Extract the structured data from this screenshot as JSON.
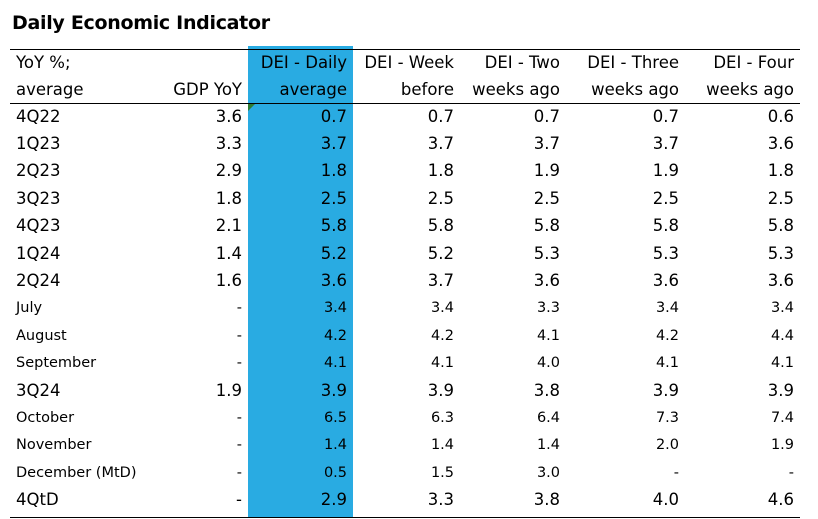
{
  "title": "Daily Economic Indicator",
  "header": {
    "row1": [
      "YoY %;",
      "",
      "DEI - Daily",
      "DEI - Week",
      "DEI - Two",
      "DEI - Three",
      "DEI - Four"
    ],
    "row2": [
      "average",
      "GDP YoY",
      "average",
      "before",
      "weeks ago",
      "weeks ago",
      "weeks ago"
    ]
  },
  "rows": [
    {
      "label": "4Q22",
      "gdp": "3.6",
      "daily": "0.7",
      "week": "0.7",
      "two": "0.7",
      "three": "0.7",
      "four": "0.6",
      "style": "big"
    },
    {
      "label": "1Q23",
      "gdp": "3.3",
      "daily": "3.7",
      "week": "3.7",
      "two": "3.7",
      "three": "3.7",
      "four": "3.6",
      "style": "big"
    },
    {
      "label": "2Q23",
      "gdp": "2.9",
      "daily": "1.8",
      "week": "1.8",
      "two": "1.9",
      "three": "1.9",
      "four": "1.8",
      "style": "big"
    },
    {
      "label": "3Q23",
      "gdp": "1.8",
      "daily": "2.5",
      "week": "2.5",
      "two": "2.5",
      "three": "2.5",
      "four": "2.5",
      "style": "big"
    },
    {
      "label": "4Q23",
      "gdp": "2.1",
      "daily": "5.8",
      "week": "5.8",
      "two": "5.8",
      "three": "5.8",
      "four": "5.8",
      "style": "big"
    },
    {
      "label": "1Q24",
      "gdp": "1.4",
      "daily": "5.2",
      "week": "5.2",
      "two": "5.3",
      "three": "5.3",
      "four": "5.3",
      "style": "big"
    },
    {
      "label": "2Q24",
      "gdp": "1.6",
      "daily": "3.6",
      "week": "3.7",
      "two": "3.6",
      "three": "3.6",
      "four": "3.6",
      "style": "big"
    },
    {
      "label": "July",
      "gdp": "-",
      "daily": "3.4",
      "week": "3.4",
      "two": "3.3",
      "three": "3.4",
      "four": "3.4",
      "style": "small"
    },
    {
      "label": "August",
      "gdp": "-",
      "daily": "4.2",
      "week": "4.2",
      "two": "4.1",
      "three": "4.2",
      "four": "4.4",
      "style": "small"
    },
    {
      "label": "September",
      "gdp": "-",
      "daily": "4.1",
      "week": "4.1",
      "two": "4.0",
      "three": "4.1",
      "four": "4.1",
      "style": "small"
    },
    {
      "label": "3Q24",
      "gdp": "1.9",
      "daily": "3.9",
      "week": "3.9",
      "two": "3.8",
      "three": "3.9",
      "four": "3.9",
      "style": "big"
    },
    {
      "label": "October",
      "gdp": "-",
      "daily": "6.5",
      "week": "6.3",
      "two": "6.4",
      "three": "7.3",
      "four": "7.4",
      "style": "small"
    },
    {
      "label": "November",
      "gdp": "-",
      "daily": "1.4",
      "week": "1.4",
      "two": "1.4",
      "three": "2.0",
      "four": "1.9",
      "style": "small"
    },
    {
      "label": "December (MtD)",
      "gdp": "-",
      "daily": "0.5",
      "week": "1.5",
      "two": "3.0",
      "three": "-",
      "four": "-",
      "style": "small"
    },
    {
      "label": "4QtD",
      "gdp": "-",
      "daily": "2.9",
      "week": "3.3",
      "two": "3.8",
      "three": "4.0",
      "four": "4.6",
      "style": "big"
    }
  ],
  "colors": {
    "highlight": "#29abe2",
    "marker": "#2e7d32"
  }
}
